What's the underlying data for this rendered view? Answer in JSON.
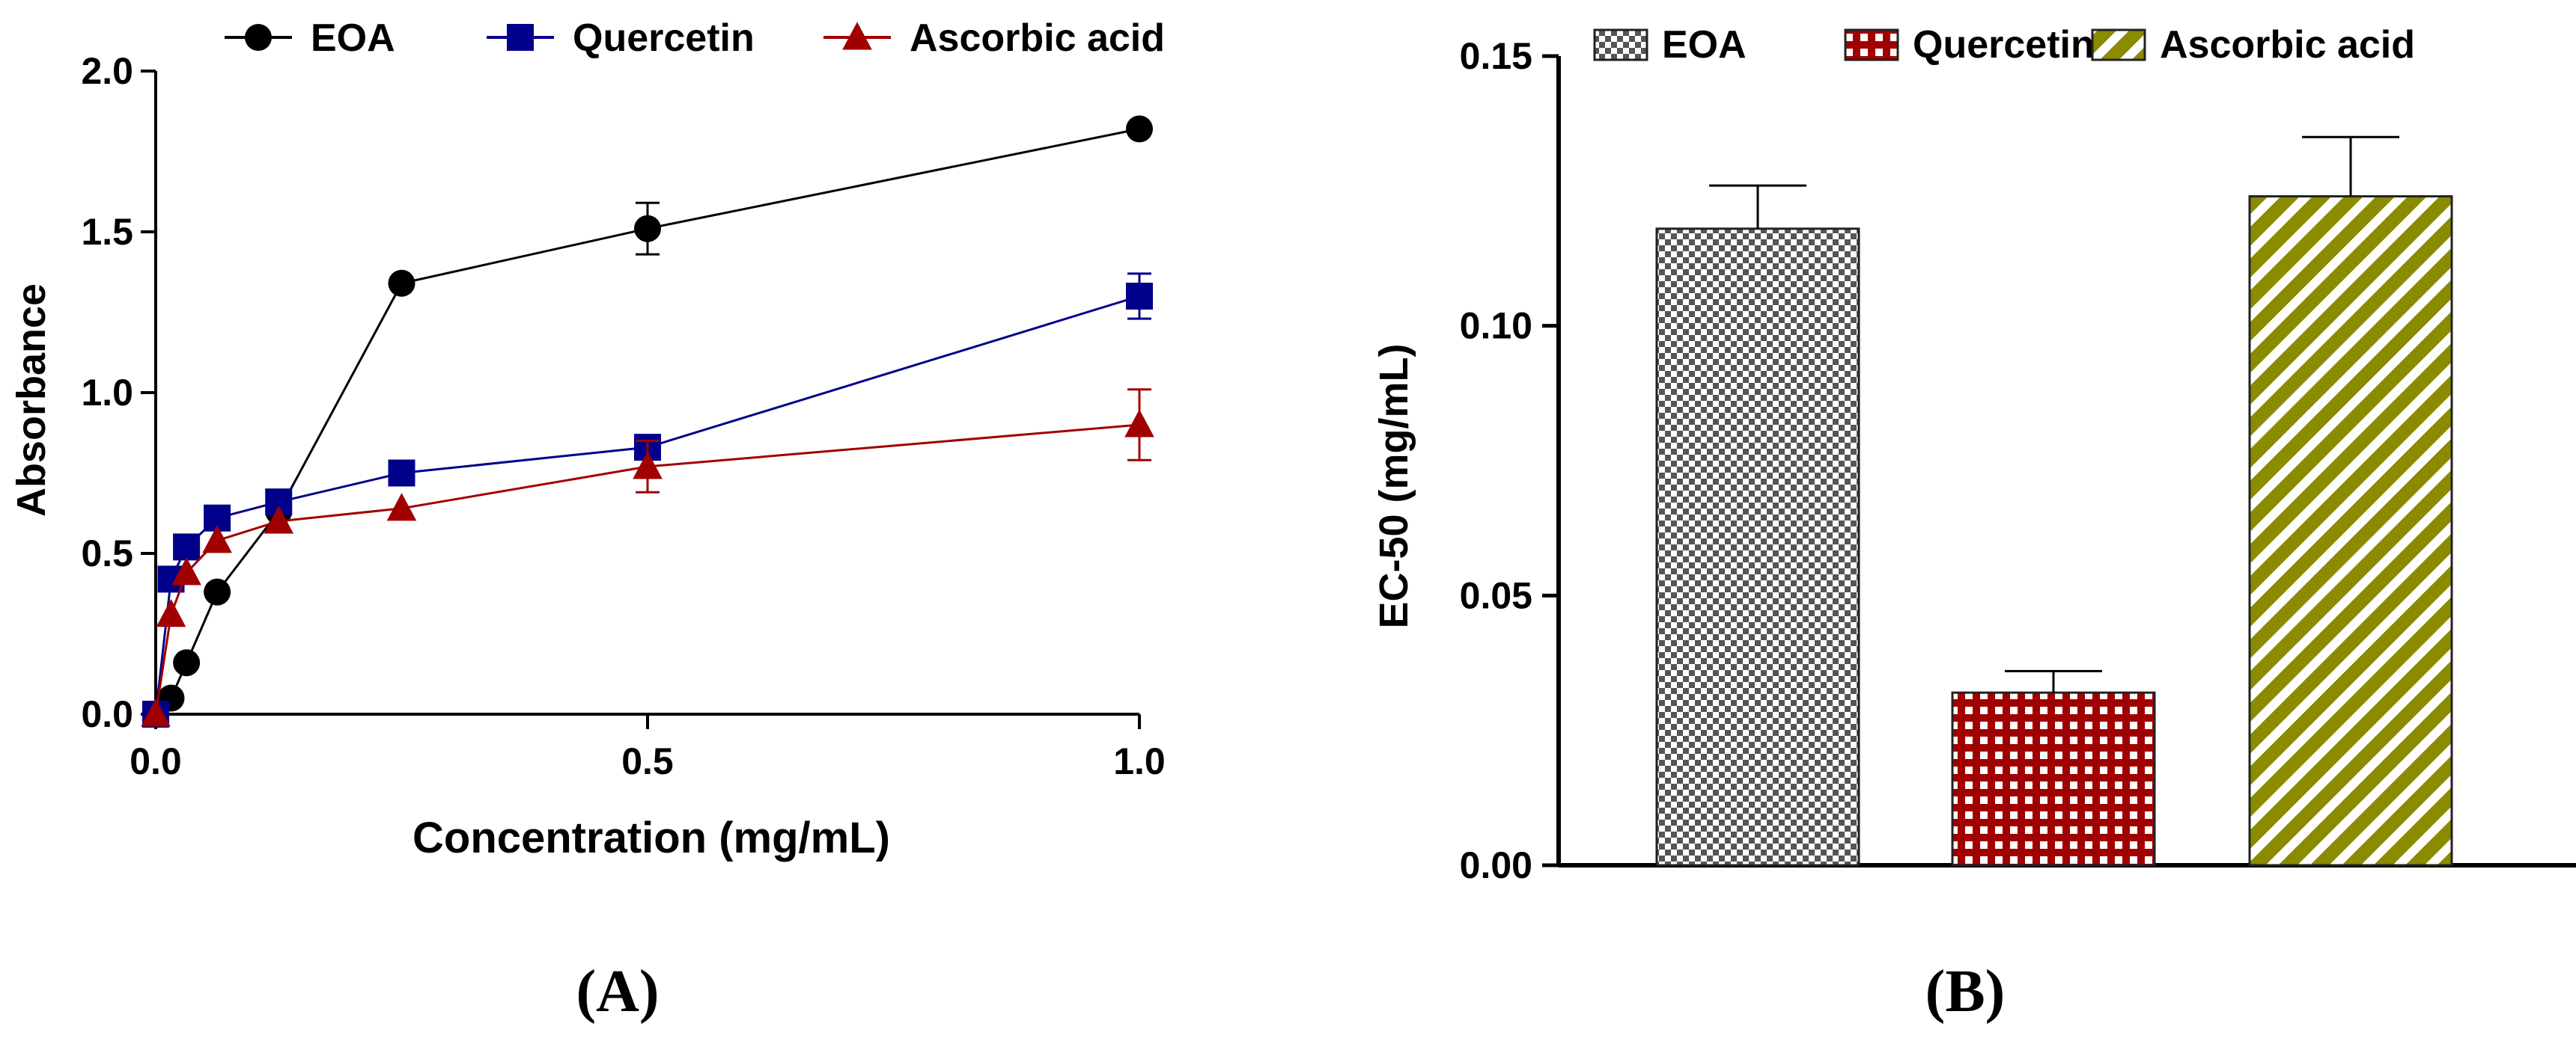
{
  "chart_data": [
    {
      "id": "A",
      "type": "line",
      "panel_label": "(A)",
      "xlabel": "Concentration (mg/mL)",
      "ylabel": "Absorbance",
      "xlim": [
        0,
        1
      ],
      "ylim": [
        0,
        2
      ],
      "xticks": [
        "0.0",
        "0.5",
        "1.0"
      ],
      "yticks": [
        "0.0",
        "0.5",
        "1.0",
        "1.5",
        "2.0"
      ],
      "x": [
        0,
        0.0156,
        0.0313,
        0.0625,
        0.125,
        0.25,
        0.5,
        1.0
      ],
      "legend": "top",
      "series": [
        {
          "name": "EOA",
          "marker": "circle",
          "color": "#000000",
          "values": [
            0.0,
            0.05,
            0.16,
            0.38,
            0.63,
            1.34,
            1.51,
            1.82
          ],
          "errors": [
            0,
            0,
            0,
            0,
            0,
            0,
            0.08,
            0
          ]
        },
        {
          "name": "Quercetin",
          "marker": "square",
          "color": "#00008b",
          "values": [
            0.0,
            0.42,
            0.52,
            0.61,
            0.66,
            0.75,
            0.83,
            1.3
          ],
          "errors": [
            0,
            0,
            0,
            0,
            0,
            0,
            0,
            0.07
          ]
        },
        {
          "name": "Ascorbic acid",
          "marker": "triangle",
          "color": "#a00000",
          "values": [
            0.0,
            0.31,
            0.44,
            0.54,
            0.6,
            0.64,
            0.77,
            0.9
          ],
          "errors": [
            0,
            0,
            0,
            0,
            0,
            0,
            0.08,
            0.11
          ]
        }
      ]
    },
    {
      "id": "B",
      "type": "bar",
      "panel_label": "(B)",
      "xlabel": "",
      "ylabel": "EC-50 (mg/mL)",
      "ylim": [
        0,
        0.15
      ],
      "yticks": [
        "0.00",
        "0.05",
        "0.10",
        "0.15"
      ],
      "categories": [
        "EOA",
        "Quercetin",
        "Ascorbic acid"
      ],
      "values": [
        0.118,
        0.032,
        0.124
      ],
      "errors": [
        0.008,
        0.004,
        0.011
      ],
      "patterns": [
        "checker",
        "grid",
        "diagonal"
      ],
      "colors": [
        "#555555",
        "#a00000",
        "#8b8b00"
      ],
      "legend": "top"
    }
  ]
}
